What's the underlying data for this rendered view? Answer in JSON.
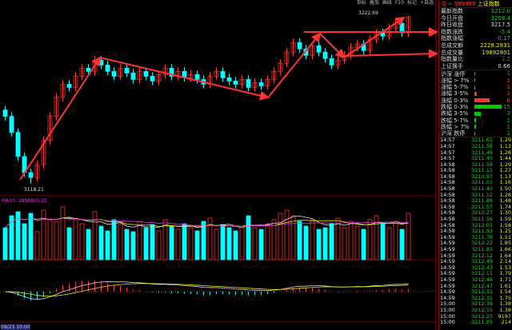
{
  "toolbar": [
    "指标",
    "叠加",
    "画线",
    "F10",
    "标记",
    "+自选"
  ],
  "chart": {
    "high_label": "3222.69",
    "low_label": "3118.21",
    "vol_indicator": "MA10: 2898805.25",
    "date_label": "09/23 10:00",
    "up_color": "#ff3333",
    "down_color": "#00ffff",
    "closes": [
      3160,
      3150,
      3135,
      3125,
      3122,
      3130,
      3145,
      3160,
      3172,
      3180,
      3178,
      3185,
      3190,
      3188,
      3195,
      3192,
      3188,
      3185,
      3190,
      3187,
      3183,
      3188,
      3185,
      3182,
      3186,
      3190,
      3185,
      3188,
      3184,
      3186,
      3183,
      3180,
      3185,
      3188,
      3184,
      3182,
      3180,
      3183,
      3178,
      3181,
      3179,
      3183,
      3188,
      3193,
      3200,
      3206,
      3202,
      3198,
      3204,
      3200,
      3196,
      3192,
      3195,
      3198,
      3203,
      3205,
      3201,
      3208,
      3212,
      3210,
      3215,
      3218,
      3212,
      3222
    ],
    "volumes": [
      40,
      55,
      60,
      45,
      58,
      35,
      62,
      50,
      48,
      66,
      40,
      52,
      45,
      38,
      60,
      42,
      36,
      50,
      44,
      38,
      35,
      48,
      40,
      44,
      36,
      50,
      42,
      38,
      45,
      40,
      36,
      48,
      52,
      38,
      44,
      40,
      36,
      42,
      55,
      40,
      38,
      45,
      50,
      58,
      62,
      55,
      48,
      42,
      50,
      38,
      40,
      45,
      52,
      40,
      48,
      42,
      38,
      50,
      55,
      45,
      40,
      48,
      38,
      58
    ]
  },
  "panel": {
    "title_code": "G = 999999",
    "title_name": "上证指数",
    "stats": [
      {
        "label": "最新指数",
        "value": "3212.0",
        "color": "#2c2"
      },
      {
        "label": "今日开盘",
        "value": "3208.4",
        "color": "#2c2"
      },
      {
        "label": "昨日收盘",
        "value": "3217.5",
        "color": "#ddd"
      },
      {
        "label": "指数涨跌",
        "value": "-5.4",
        "color": "#2c2"
      },
      {
        "label": "指数涨幅",
        "value": "-0.17",
        "color": "#2c2"
      },
      {
        "label": "总成交额",
        "value": "2228.2831",
        "color": "#ee0"
      },
      {
        "label": "总成交量",
        "value": "19892801",
        "color": "#ee0"
      },
      {
        "label": "指数量比",
        "value": "1.2",
        "color": "#f33"
      },
      {
        "label": "上证换手",
        "value": "0.66",
        "color": "#ddd"
      }
    ],
    "breadth": [
      {
        "label": "沪深 涨停",
        "pct": 2,
        "color": "#f33",
        "n": "1"
      },
      {
        "label": "涨幅 > 7%",
        "pct": 2,
        "color": "#f33",
        "n": "1"
      },
      {
        "label": "涨幅 5-7%",
        "pct": 2,
        "color": "#f33",
        "n": "1"
      },
      {
        "label": "涨幅 3-5%",
        "pct": 5,
        "color": "#f33",
        "n": "1"
      },
      {
        "label": "涨幅 0-3%",
        "pct": 35,
        "color": "#f33",
        "n": "6"
      },
      {
        "label": "跌幅 0-3%",
        "pct": 65,
        "color": "#0c0",
        "n": "15"
      },
      {
        "label": "跌幅 3-5%",
        "pct": 15,
        "color": "#0c0",
        "n": "3"
      },
      {
        "label": "跌幅 5-7%",
        "pct": 4,
        "color": "#0c0",
        "n": "1"
      },
      {
        "label": "跌幅 > 7%",
        "pct": 3,
        "color": "#0c0",
        "n": "1"
      },
      {
        "label": "沪深 跌停",
        "pct": 2,
        "color": "#0c0",
        "n": "1"
      }
    ],
    "ticks": [
      [
        "14:57",
        "3211.61",
        "1.29"
      ],
      [
        "14:57",
        "3211.56",
        "1.13"
      ],
      [
        "14:57",
        "3211.46",
        "1.28"
      ],
      [
        "14:57",
        "3211.40",
        "1.44"
      ],
      [
        "14:58",
        "3211.58",
        "1.29"
      ],
      [
        "14:58",
        "3211.11",
        "1.27"
      ],
      [
        "14:58",
        "3210.97",
        "1.13"
      ],
      [
        "14:58",
        "3211.01",
        "1.16"
      ],
      [
        "14:58",
        "3211.42",
        "1.50"
      ],
      [
        "14:58",
        "3211.12",
        "1.28"
      ],
      [
        "14:58",
        "3211.86",
        "1.48"
      ],
      [
        "14:58",
        "3211.57",
        "1.74"
      ],
      [
        "14:58",
        "3212.27",
        "1.30"
      ],
      [
        "14:58",
        "3211.56",
        "1.59"
      ],
      [
        "14:58",
        "3212.01",
        "1.58"
      ],
      [
        "14:58",
        "3211.93",
        "1.25"
      ],
      [
        "14:59",
        "3211.78",
        "1.51"
      ],
      [
        "14:59",
        "3212.22",
        "1.85"
      ],
      [
        "14:59",
        "3211.85",
        "1.66"
      ],
      [
        "14:59",
        "3212.12",
        "1.64"
      ],
      [
        "14:59",
        "3212.49",
        "2.14"
      ],
      [
        "14:59",
        "3212.43",
        "1.53"
      ],
      [
        "14:59",
        "3212.11",
        "1.79"
      ],
      [
        "14:59",
        "3212.48",
        "1.71"
      ],
      [
        "14:59",
        "3212.47",
        "1.61"
      ],
      [
        "14:59",
        "3212.31",
        "1.54"
      ],
      [
        "14:59",
        "3212.31",
        "1.75"
      ],
      [
        "15:00",
        "3212.38",
        "1.38"
      ],
      [
        "15:00",
        "3212.55",
        "1.38"
      ],
      [
        "15:00",
        "3212.25",
        "9197"
      ],
      [
        "15:00",
        "3211.85",
        "214"
      ]
    ]
  }
}
